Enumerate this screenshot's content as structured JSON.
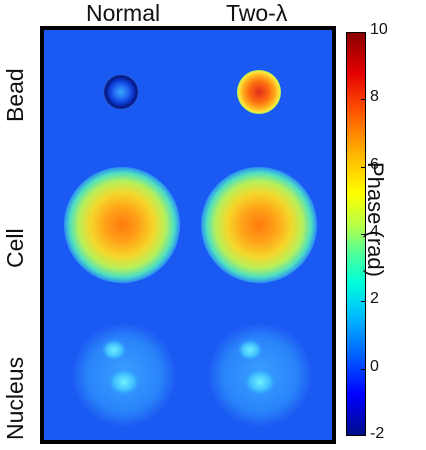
{
  "columns": {
    "normal": "Normal",
    "two_lambda": "Two-λ"
  },
  "rows": {
    "bead": "Bead",
    "cell": "Cell",
    "nucleus": "Nucleus"
  },
  "colorbar": {
    "title": "Phase (rad)",
    "ticks": [
      "10",
      "8",
      "6",
      "4",
      "2",
      "0",
      "-2"
    ],
    "range": [
      -2,
      10
    ],
    "colormap": "jet",
    "background_color": "#1b5af2"
  }
}
